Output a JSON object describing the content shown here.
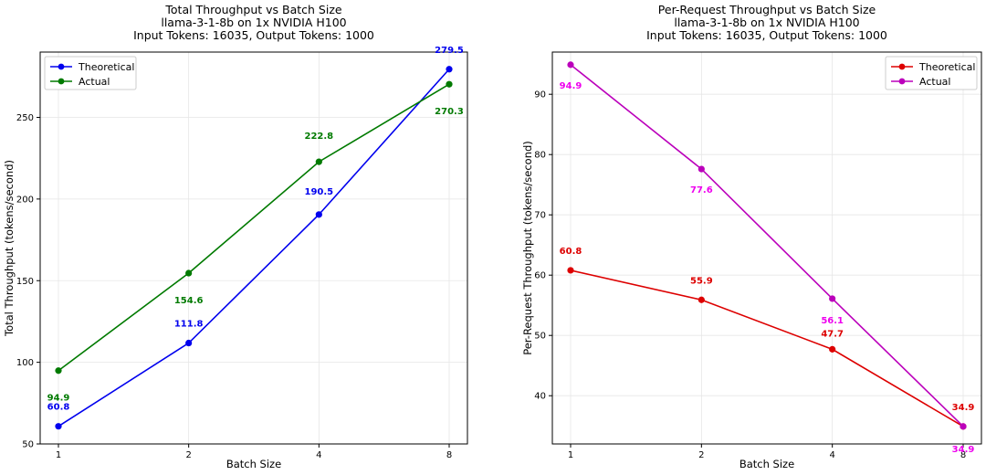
{
  "chart_data": [
    {
      "type": "line",
      "title_lines": [
        "Total Throughput vs Batch Size",
        "llama-3-1-8b on 1x NVIDIA H100",
        "Input Tokens: 16035, Output Tokens: 1000"
      ],
      "xlabel": "Batch Size",
      "ylabel": "Total Throughput (tokens/second)",
      "x": [
        1,
        2,
        4,
        8
      ],
      "x_scale": "log2",
      "x_ticks": [
        "1",
        "2",
        "4",
        "8"
      ],
      "ylim": [
        50,
        290
      ],
      "y_ticks": [
        50,
        100,
        150,
        200,
        250
      ],
      "grid": true,
      "legend_position": "top-left",
      "series": [
        {
          "name": "Theoretical",
          "color": "#0000ee",
          "values": [
            60.8,
            111.8,
            190.5,
            279.5
          ],
          "labels": [
            "60.8",
            "111.8",
            "190.5",
            "279.5"
          ],
          "label_side": "above"
        },
        {
          "name": "Actual",
          "color": "#007a00",
          "values": [
            94.9,
            154.6,
            222.8,
            270.3
          ],
          "labels": [
            "94.9",
            "154.6",
            "222.8",
            "270.3"
          ],
          "label_side": "below"
        }
      ]
    },
    {
      "type": "line",
      "title_lines": [
        "Per-Request Throughput vs Batch Size",
        "llama-3-1-8b on 1x NVIDIA H100",
        "Input Tokens: 16035, Output Tokens: 1000"
      ],
      "xlabel": "Batch Size",
      "ylabel": "Per-Request Throughput (tokens/second)",
      "x": [
        1,
        2,
        4,
        8
      ],
      "x_scale": "log2",
      "x_ticks": [
        "1",
        "2",
        "4",
        "8"
      ],
      "ylim": [
        32,
        97
      ],
      "y_ticks": [
        40,
        50,
        60,
        70,
        80,
        90
      ],
      "grid": true,
      "legend_position": "top-right",
      "series": [
        {
          "name": "Theoretical",
          "color": "#dd0000",
          "values": [
            60.8,
            55.9,
            47.7,
            34.9
          ],
          "labels": [
            "60.8",
            "55.9",
            "47.7",
            "34.9"
          ],
          "label_side": "above"
        },
        {
          "name": "Actual",
          "color": "#bb00bb",
          "label_color": "#ee00ee",
          "values": [
            94.9,
            77.6,
            56.1,
            34.9
          ],
          "labels": [
            "94.9",
            "77.6",
            "56.1",
            "34.9"
          ],
          "label_side": "below"
        }
      ]
    }
  ]
}
